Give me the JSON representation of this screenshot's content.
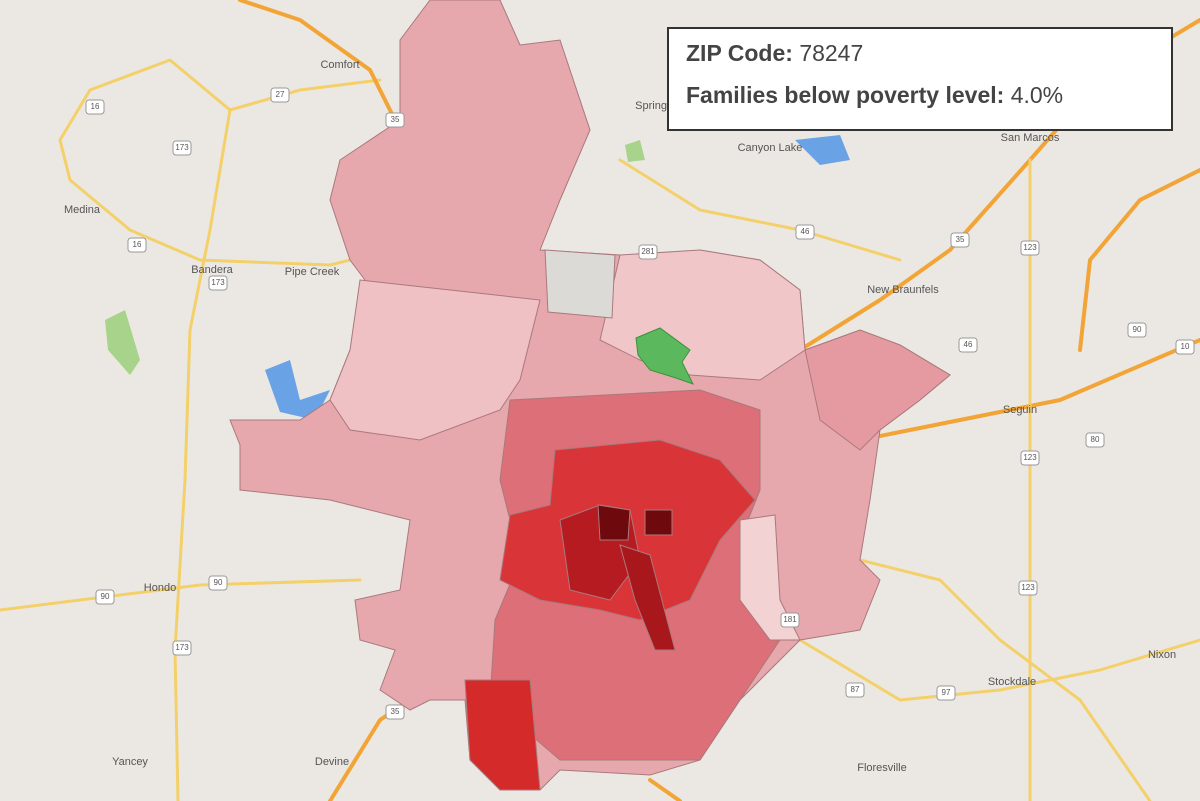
{
  "tooltip": {
    "zip_label": "ZIP Code:",
    "zip_value": "78247",
    "poverty_label": "Families below poverty level:",
    "poverty_value": "4.0%"
  },
  "places": [
    "Comfort",
    "Medina",
    "Bandera",
    "Pipe Creek",
    "Hondo",
    "Yancey",
    "Devine",
    "Floresville",
    "Stockdale",
    "Nixon",
    "Seguin",
    "New Braunfels",
    "San Marcos",
    "Canyon Lake",
    "Spring Branch"
  ],
  "shields": [
    "16",
    "173",
    "27",
    "16",
    "173",
    "173",
    "90",
    "90",
    "35",
    "35",
    "281",
    "46",
    "35",
    "123",
    "90",
    "46",
    "123",
    "97",
    "87",
    "181",
    "10",
    "123",
    "80"
  ]
}
